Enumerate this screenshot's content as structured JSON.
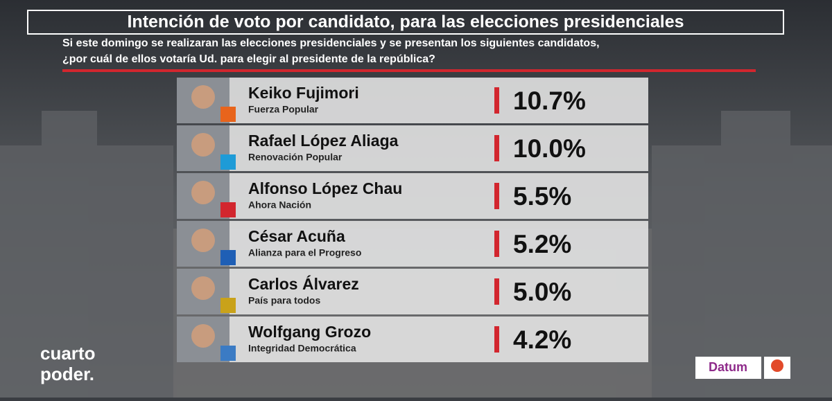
{
  "header": {
    "title": "Intención de voto por candidato, para las elecciones presidenciales",
    "question": [
      "Si este domingo se realizaran las elecciones presidenciales y se presentan los siguientes candidatos,",
      "¿por cuál de ellos votaría Ud. para elegir al presidente de la república?"
    ]
  },
  "candidates": [
    {
      "name": "Keiko Fujimori",
      "party": "Fuerza Popular",
      "share": "10.7%"
    },
    {
      "name": "Rafael López Aliaga",
      "party": "Renovación Popular",
      "share": "10.0%"
    },
    {
      "name": "Alfonso López Chau",
      "party": "Ahora Nación",
      "share": "5.5%"
    },
    {
      "name": "César Acuña",
      "party": "Alianza para el Progreso",
      "share": "5.2%"
    },
    {
      "name": "Carlos Álvarez",
      "party": "País para todos",
      "share": "5.0%"
    },
    {
      "name": "Wolfgang Grozo",
      "party": "Integridad Democrática",
      "share": "4.2%"
    }
  ],
  "branding": {
    "channel": [
      "cuarto",
      "poder."
    ],
    "pollster": "Datum"
  }
}
